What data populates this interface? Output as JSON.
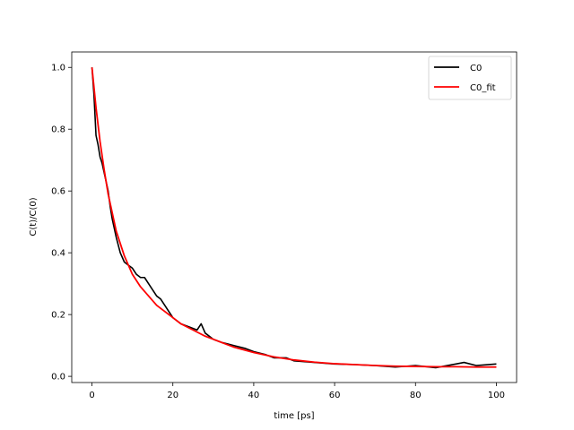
{
  "chart_data": {
    "type": "line",
    "title": "",
    "xlabel": "time [ps]",
    "ylabel": "C(t)/C(0)",
    "xlim": [
      -5,
      105
    ],
    "ylim": [
      -0.02,
      1.05
    ],
    "xticks": [
      0,
      20,
      40,
      60,
      80,
      100
    ],
    "yticks": [
      0.0,
      0.2,
      0.4,
      0.6,
      0.8,
      1.0
    ],
    "xtick_labels": [
      "0",
      "20",
      "40",
      "60",
      "80",
      "100"
    ],
    "ytick_labels": [
      "0.0",
      "0.2",
      "0.4",
      "0.6",
      "0.8",
      "1.0"
    ],
    "grid": false,
    "legend_position": "top-right",
    "series": [
      {
        "name": "C0",
        "color": "#000000",
        "x": [
          0,
          0.5,
          1,
          1.5,
          2,
          2.5,
          3,
          3.5,
          4,
          4.5,
          5,
          5.5,
          6,
          7,
          8,
          9,
          10,
          11,
          12,
          13,
          14,
          15,
          16,
          17,
          18,
          19,
          20,
          22,
          24,
          26,
          27,
          28,
          30,
          32,
          35,
          38,
          40,
          43,
          45,
          48,
          50,
          55,
          60,
          65,
          70,
          75,
          80,
          85,
          90,
          92,
          95,
          100
        ],
        "y": [
          1.0,
          0.91,
          0.78,
          0.75,
          0.71,
          0.69,
          0.66,
          0.63,
          0.6,
          0.55,
          0.51,
          0.48,
          0.45,
          0.4,
          0.37,
          0.36,
          0.35,
          0.33,
          0.32,
          0.32,
          0.3,
          0.28,
          0.26,
          0.25,
          0.23,
          0.21,
          0.19,
          0.17,
          0.16,
          0.15,
          0.17,
          0.14,
          0.12,
          0.11,
          0.1,
          0.09,
          0.08,
          0.07,
          0.06,
          0.06,
          0.05,
          0.045,
          0.04,
          0.038,
          0.035,
          0.03,
          0.035,
          0.028,
          0.04,
          0.045,
          0.035,
          0.04
        ]
      },
      {
        "name": "C0_fit",
        "color": "#ff0000",
        "x": [
          0,
          1,
          2,
          3,
          4,
          5,
          6,
          7,
          8,
          9,
          10,
          12,
          14,
          16,
          18,
          20,
          22,
          25,
          28,
          30,
          35,
          40,
          45,
          50,
          55,
          60,
          65,
          70,
          75,
          80,
          85,
          90,
          95,
          100
        ],
        "y": [
          1.0,
          0.87,
          0.76,
          0.67,
          0.59,
          0.53,
          0.47,
          0.43,
          0.39,
          0.36,
          0.33,
          0.29,
          0.26,
          0.23,
          0.21,
          0.19,
          0.17,
          0.15,
          0.13,
          0.12,
          0.095,
          0.077,
          0.063,
          0.053,
          0.046,
          0.041,
          0.038,
          0.035,
          0.033,
          0.032,
          0.031,
          0.031,
          0.03,
          0.03
        ]
      }
    ]
  }
}
